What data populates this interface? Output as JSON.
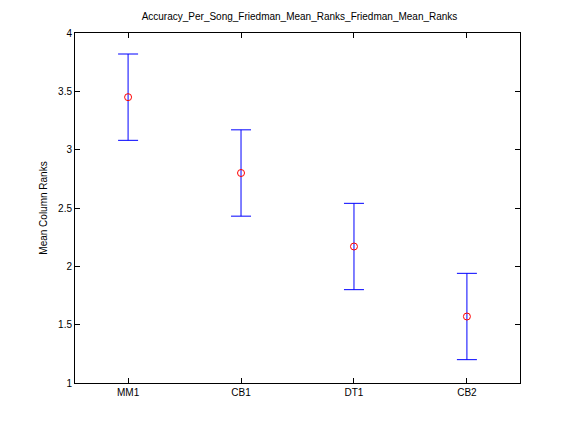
{
  "chart_data": {
    "type": "scatter",
    "title": "Accuracy_Per_Song_Friedman_Mean_Ranks_Friedman_Mean_Ranks",
    "y_label": "Mean Column Ranks",
    "categories": [
      "MM1",
      "CB1",
      "DT1",
      "CB2"
    ],
    "values": [
      3.45,
      2.8,
      2.17,
      1.57
    ],
    "error": [
      0.37,
      0.37,
      0.37,
      0.37
    ],
    "color": "#ff0000",
    "marker": "circle-open",
    "ylim": [
      1,
      4
    ],
    "yticks": [
      1,
      1.5,
      2,
      2.5,
      3,
      3.5,
      4
    ],
    "grid": false
  }
}
